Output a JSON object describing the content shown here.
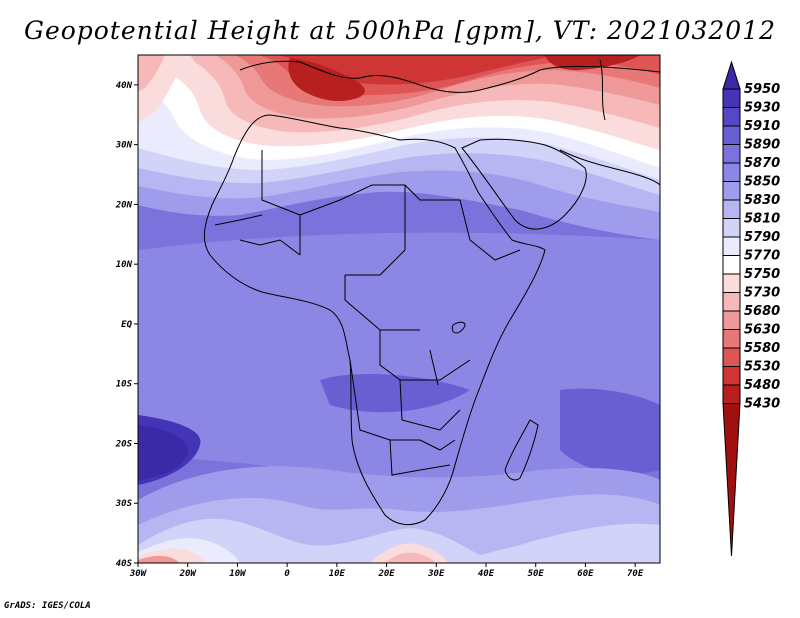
{
  "title": "Geopotential Height at 500hPa [gpm], VT: 2021032012",
  "credit": "GrADS: IGES/COLA",
  "map": {
    "variable": "Geopotential Height",
    "level": "500hPa",
    "units": "gpm",
    "valid_time": "2021032012",
    "lon_range": [
      -30,
      75
    ],
    "lat_range": [
      -40,
      45
    ],
    "lon_ticks": [
      "30W",
      "20W",
      "10W",
      "0",
      "10E",
      "20E",
      "30E",
      "40E",
      "50E",
      "60E",
      "70E"
    ],
    "lat_ticks": [
      "40N",
      "30N",
      "20N",
      "10N",
      "EQ",
      "10S",
      "20S",
      "30S",
      "40S"
    ]
  },
  "colorbar": {
    "levels": [
      "5950",
      "5930",
      "5910",
      "5890",
      "5870",
      "5850",
      "5830",
      "5810",
      "5790",
      "5770",
      "5750",
      "5730",
      "5680",
      "5630",
      "5580",
      "5530",
      "5480",
      "5430"
    ],
    "colors": [
      "#3a2aa8",
      "#4435b8",
      "#5548c6",
      "#6a5fd2",
      "#7c72dc",
      "#8c86e4",
      "#a09cec",
      "#b8b6f2",
      "#d2d3f8",
      "#eaebfc",
      "#ffffff",
      "#fbdcdc",
      "#f6b8b8",
      "#ef9898",
      "#e87878",
      "#de5555",
      "#cf3535",
      "#b81f1f",
      "#a01010"
    ]
  }
}
